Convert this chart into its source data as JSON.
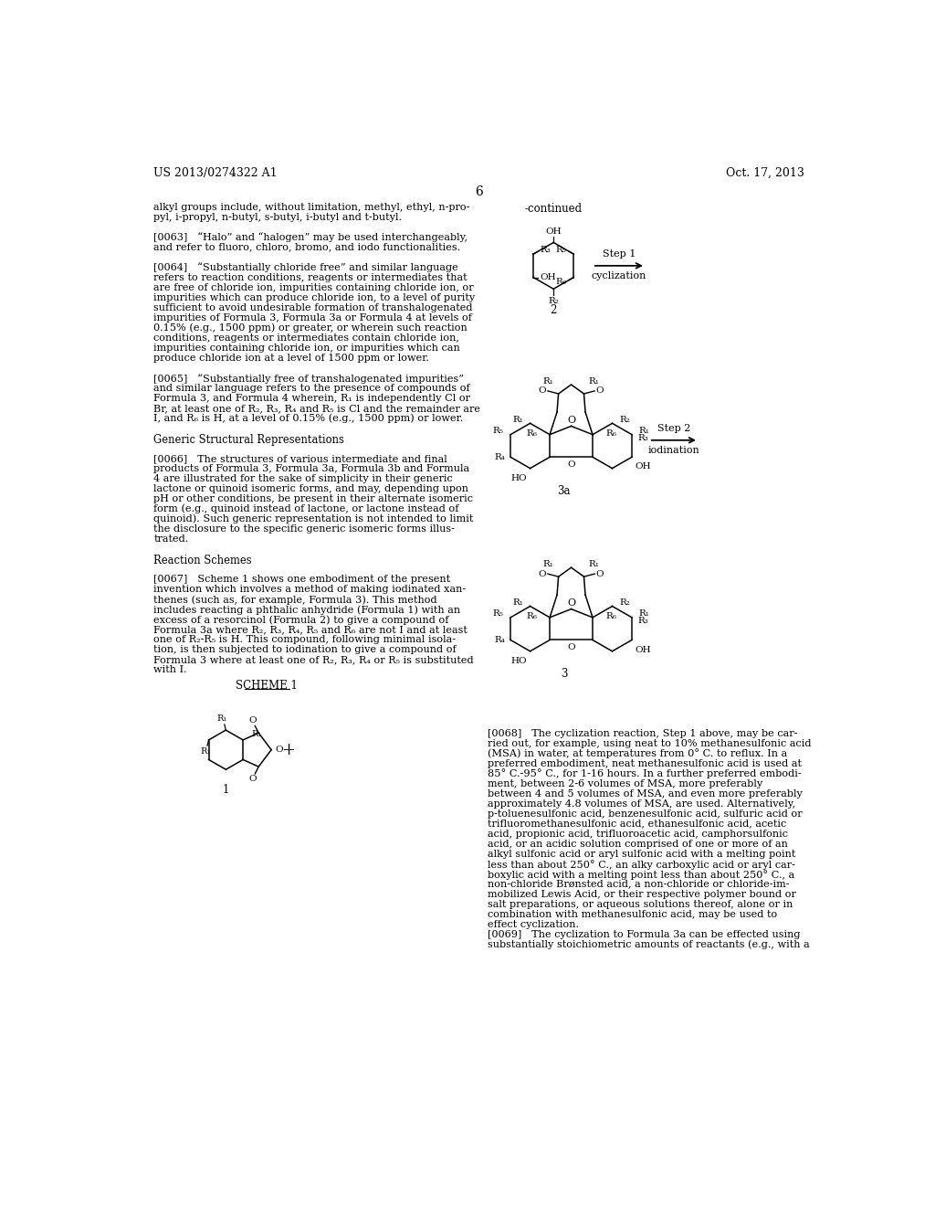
{
  "background_color": "#ffffff",
  "page_width": 10.24,
  "page_height": 13.2,
  "header_left": "US 2013/0274322 A1",
  "header_right": "Oct. 17, 2013",
  "page_number": "6",
  "continued_label": "-continued",
  "left_column_text": [
    "alkyl groups include, without limitation, methyl, ethyl, n-pro-",
    "pyl, i-propyl, n-butyl, s-butyl, i-butyl and t-butyl.",
    "",
    "[0063]   “Halo” and “halogen” may be used interchangeably,",
    "and refer to fluoro, chloro, bromo, and iodo functionalities.",
    "",
    "[0064]   “Substantially chloride free” and similar language",
    "refers to reaction conditions, reagents or intermediates that",
    "are free of chloride ion, impurities containing chloride ion, or",
    "impurities which can produce chloride ion, to a level of purity",
    "sufficient to avoid undesirable formation of transhalogenated",
    "impurities of Formula 3, Formula 3a or Formula 4 at levels of",
    "0.15% (e.g., 1500 ppm) or greater, or wherein such reaction",
    "conditions, reagents or intermediates contain chloride ion,",
    "impurities containing chloride ion, or impurities which can",
    "produce chloride ion at a level of 1500 ppm or lower.",
    "",
    "[0065]   “Substantially free of transhalogenated impurities”",
    "and similar language refers to the presence of compounds of",
    "Formula 3, and Formula 4 wherein, R₁ is independently Cl or",
    "Br, at least one of R₂, R₃, R₄ and R₅ is Cl and the remainder are",
    "I, and R₆ is H, at a level of 0.15% (e.g., 1500 ppm) or lower.",
    "",
    "Generic Structural Representations",
    "",
    "[0066]   The structures of various intermediate and final",
    "products of Formula 3, Formula 3a, Formula 3b and Formula",
    "4 are illustrated for the sake of simplicity in their generic",
    "lactone or quinoid isomeric forms, and may, depending upon",
    "pH or other conditions, be present in their alternate isomeric",
    "form (e.g., quinoid instead of lactone, or lactone instead of",
    "quinoid). Such generic representation is not intended to limit",
    "the disclosure to the specific generic isomeric forms illus-",
    "trated.",
    "",
    "Reaction Schemes",
    "",
    "[0067]   Scheme 1 shows one embodiment of the present",
    "invention which involves a method of making iodinated xan-",
    "thenes (such as, for example, Formula 3). This method",
    "includes reacting a phthalic anhydride (Formula 1) with an",
    "excess of a resorcinol (Formula 2) to give a compound of",
    "Formula 3a where R₂, R₃, R₄, R₅ and R₆ are not I and at least",
    "one of R₂-R₅ is H. This compound, following minimal isola-",
    "tion, is then subjected to iodination to give a compound of",
    "Formula 3 where at least one of R₂, R₃, R₄ or R₅ is substituted",
    "with I."
  ],
  "right_column_text_bottom": [
    "[0068]   The cyclization reaction, Step 1 above, may be car-",
    "ried out, for example, using neat to 10% methanesulfonic acid",
    "(MSA) in water, at temperatures from 0° C. to reflux. In a",
    "preferred embodiment, neat methanesulfonic acid is used at",
    "85° C.-95° C., for 1-16 hours. In a further preferred embodi-",
    "ment, between 2-6 volumes of MSA, more preferably",
    "between 4 and 5 volumes of MSA, and even more preferably",
    "approximately 4.8 volumes of MSA, are used. Alternatively,",
    "p-toluenesulfonic acid, benzenesulfonic acid, sulfuric acid or",
    "trifluoromethanesulfonic acid, ethanesulfonic acid, acetic",
    "acid, propionic acid, trifluoroacetic acid, camphorsulfonic",
    "acid, or an acidic solution comprised of one or more of an",
    "alkyl sulfonic acid or aryl sulfonic acid with a melting point",
    "less than about 250° C., an alky carboxylic acid or aryl car-",
    "boxylic acid with a melting point less than about 250° C., a",
    "non-chloride Brønsted acid, a non-chloride or chloride-im-",
    "mobilized Lewis Acid, or their respective polymer bound or",
    "salt preparations, or aqueous solutions thereof, alone or in",
    "combination with methanesulfonic acid, may be used to",
    "effect cyclization.",
    "[0069]   The cyclization to Formula 3a can be effected using",
    "substantially stoichiometric amounts of reactants (e.g., with a"
  ]
}
